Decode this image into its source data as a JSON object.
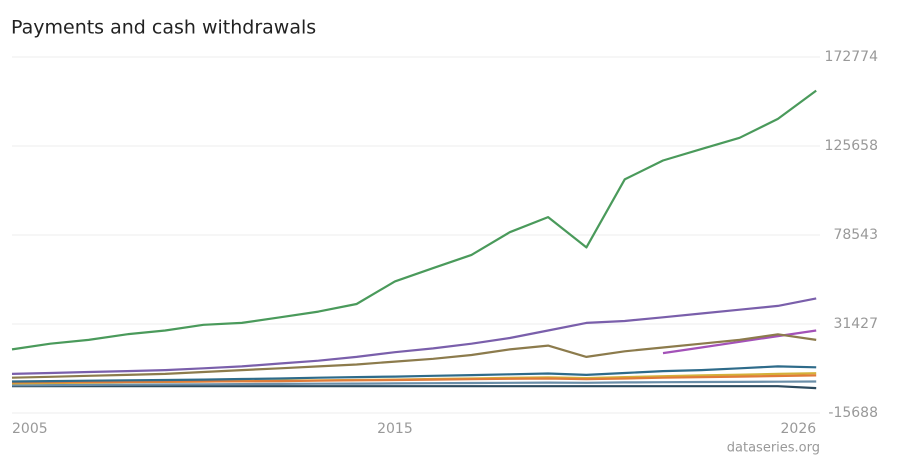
{
  "chart_data": {
    "type": "line",
    "title": "Payments and cash withdrawals",
    "source": "dataseries.org",
    "x": [
      2005,
      2006,
      2007,
      2008,
      2009,
      2010,
      2011,
      2012,
      2013,
      2014,
      2015,
      2016,
      2017,
      2018,
      2019,
      2020,
      2021,
      2022,
      2023,
      2024,
      2025,
      2026
    ],
    "xlim": [
      2005,
      2026.1
    ],
    "xticks": [
      2005,
      2015,
      2026
    ],
    "ylim": [
      -15688,
      172774
    ],
    "yticks": [
      -15688,
      31427,
      78543,
      125658,
      172774
    ],
    "grid": true,
    "series": [
      {
        "color": "#4a9a5b",
        "values": [
          18000,
          21000,
          23000,
          26000,
          28000,
          31000,
          32000,
          35000,
          38000,
          42000,
          54000,
          61000,
          68000,
          80000,
          88000,
          72000,
          108000,
          118000,
          124000,
          130000,
          140000,
          155000
        ]
      },
      {
        "color": "#7a5fab",
        "values": [
          5000,
          5500,
          6000,
          6500,
          7000,
          8000,
          9000,
          10500,
          12000,
          14000,
          16500,
          18500,
          21000,
          24000,
          28000,
          32000,
          33000,
          35000,
          37000,
          39000,
          41000,
          45000
        ]
      },
      {
        "color": "#8c7b4c",
        "values": [
          3000,
          3500,
          4000,
          4500,
          5000,
          6000,
          7000,
          8000,
          9000,
          10000,
          11500,
          13000,
          15000,
          18000,
          20000,
          14000,
          17000,
          19000,
          21000,
          23000,
          26000,
          23000
        ]
      },
      {
        "color": "#a352b8",
        "values": [
          null,
          null,
          null,
          null,
          null,
          null,
          null,
          null,
          null,
          null,
          null,
          null,
          null,
          null,
          null,
          null,
          null,
          16000,
          19000,
          22000,
          25000,
          28000
        ]
      },
      {
        "color": "#2e6b8a",
        "values": [
          1000,
          1200,
          1400,
          1600,
          1800,
          2000,
          2300,
          2600,
          3000,
          3300,
          3600,
          4000,
          4400,
          4800,
          5200,
          4500,
          5500,
          6500,
          7000,
          8000,
          9000,
          8500
        ]
      },
      {
        "color": "#e07b39",
        "values": [
          500,
          600,
          700,
          800,
          900,
          1000,
          1100,
          1200,
          1400,
          1600,
          1800,
          2000,
          2200,
          2400,
          2600,
          2200,
          2600,
          3000,
          3300,
          3600,
          3900,
          4200
        ]
      },
      {
        "color": "#d4b13a",
        "values": [
          0,
          200,
          400,
          600,
          800,
          1000,
          1200,
          1400,
          1600,
          1800,
          2000,
          2300,
          2600,
          2900,
          3200,
          2800,
          3300,
          3800,
          4200,
          4600,
          5000,
          5400
        ]
      },
      {
        "color": "#6a8ea8",
        "values": [
          -1000,
          -900,
          -800,
          -700,
          -600,
          -500,
          -400,
          -300,
          -200,
          -100,
          0,
          100,
          200,
          300,
          400,
          300,
          500,
          600,
          700,
          800,
          900,
          1000
        ]
      },
      {
        "color": "#2c4a5e",
        "values": [
          -1500,
          -1500,
          -1500,
          -1500,
          -1500,
          -1500,
          -1500,
          -1500,
          -1500,
          -1500,
          -1500,
          -1500,
          -1500,
          -1500,
          -1500,
          -1500,
          -1500,
          -1500,
          -1500,
          -1500,
          -1500,
          -2500
        ]
      }
    ]
  }
}
